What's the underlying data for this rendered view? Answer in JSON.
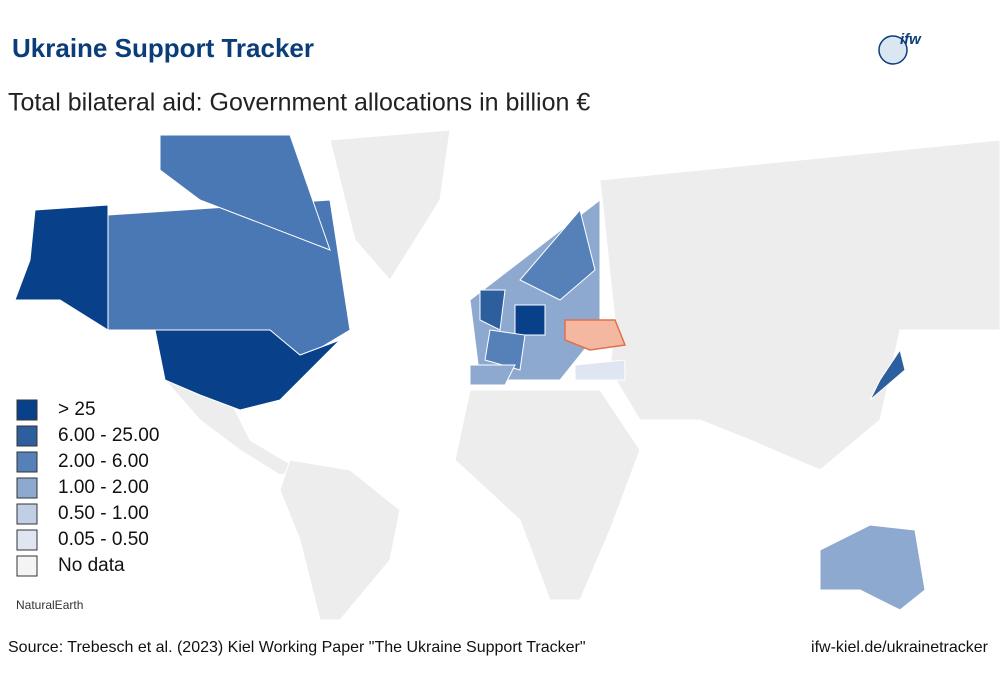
{
  "header": {
    "title": "Ukraine Support Tracker",
    "logo": "ifw",
    "subtitle": "Total bilateral aid: Government allocations in billion €"
  },
  "legend": {
    "items": [
      {
        "label": "> 25",
        "color": "#08408a"
      },
      {
        "label": "6.00 - 25.00",
        "color": "#2d5f9e"
      },
      {
        "label": "2.00 - 6.00",
        "color": "#5680b8"
      },
      {
        "label": "1.00 - 2.00",
        "color": "#8ea9cf"
      },
      {
        "label": "0.50 - 1.00",
        "color": "#c1cfe4"
      },
      {
        "label": "0.05 - 0.50",
        "color": "#dfe6f1"
      },
      {
        "label": "No data",
        "color": "#f4f4f4"
      }
    ]
  },
  "attribution": "NaturalEarth",
  "footer": {
    "source": "Source: Trebesch et al. (2023) Kiel Working Paper \"The Ukraine Support Tracker\"",
    "link": "ifw-kiel.de/ukrainetracker"
  }
}
